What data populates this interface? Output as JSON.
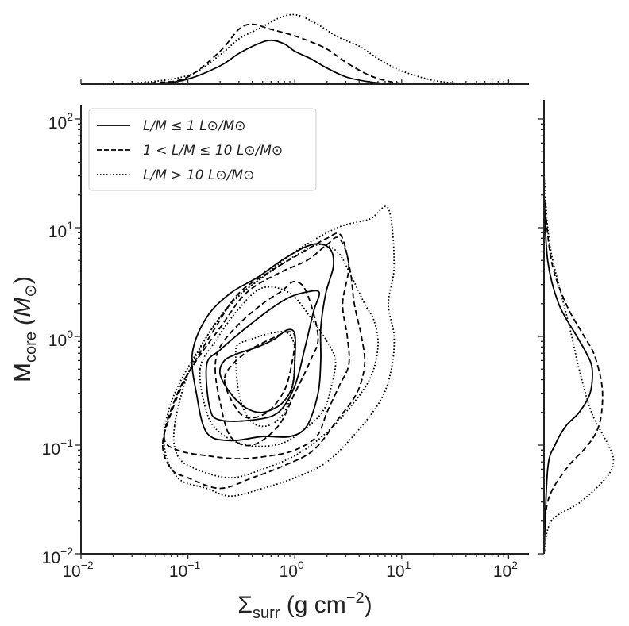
{
  "chart_data": {
    "type": "contour",
    "x_scale": "log",
    "y_scale": "log",
    "xlim": [
      0.01,
      150
    ],
    "ylim": [
      0.01,
      150
    ],
    "grid": false,
    "legend_placement": "top-left",
    "xlabel": {
      "main": "Σ",
      "sub": "surr",
      "rest": " (g cm",
      "sup": "−2",
      "close": ")"
    },
    "ylabel": {
      "main": "M",
      "sub": "core",
      "rest": " (M",
      "sunsym": "⊙",
      "close": ")"
    },
    "x_ticks": [
      {
        "base": "10",
        "exp": "−2"
      },
      {
        "base": "10",
        "exp": "−1"
      },
      {
        "base": "10",
        "exp": "0"
      },
      {
        "base": "10",
        "exp": "1"
      },
      {
        "base": "10",
        "exp": "2"
      }
    ],
    "y_ticks": [
      {
        "base": "10",
        "exp": "−2"
      },
      {
        "base": "10",
        "exp": "−1"
      },
      {
        "base": "10",
        "exp": "0"
      },
      {
        "base": "10",
        "exp": "1"
      },
      {
        "base": "10",
        "exp": "2"
      }
    ],
    "legend": [
      {
        "label": "L/M ≤ 1 L⊙/M⊙",
        "style": "solid"
      },
      {
        "label": "1 < L/M ≤ 10 L⊙/M⊙",
        "style": "dashed"
      },
      {
        "label": "L/M > 10 L⊙/M⊙",
        "style": "dotted"
      }
    ],
    "series": [
      {
        "style": "solid",
        "color": "#000000",
        "contours": [
          [
            [
              0.2,
              0.45
            ],
            [
              0.25,
              0.3
            ],
            [
              0.35,
              0.22
            ],
            [
              0.5,
              0.2
            ],
            [
              0.75,
              0.24
            ],
            [
              0.95,
              0.35
            ],
            [
              1.0,
              0.6
            ],
            [
              1.0,
              1.05
            ],
            [
              0.85,
              1.15
            ],
            [
              0.65,
              0.95
            ],
            [
              0.45,
              0.8
            ],
            [
              0.3,
              0.7
            ],
            [
              0.22,
              0.6
            ]
          ],
          [
            [
              0.15,
              0.55
            ],
            [
              0.16,
              0.22
            ],
            [
              0.2,
              0.17
            ],
            [
              0.4,
              0.17
            ],
            [
              0.7,
              0.2
            ],
            [
              1.0,
              0.35
            ],
            [
              1.25,
              0.8
            ],
            [
              1.5,
              1.7
            ],
            [
              1.7,
              2.5
            ],
            [
              1.4,
              2.6
            ],
            [
              0.9,
              2.3
            ],
            [
              0.6,
              1.8
            ],
            [
              0.35,
              1.2
            ],
            [
              0.2,
              0.75
            ]
          ],
          [
            [
              0.11,
              0.7
            ],
            [
              0.12,
              0.3
            ],
            [
              0.15,
              0.13
            ],
            [
              0.25,
              0.11
            ],
            [
              0.5,
              0.12
            ],
            [
              0.9,
              0.12
            ],
            [
              1.3,
              0.15
            ],
            [
              1.65,
              0.3
            ],
            [
              1.75,
              0.6
            ],
            [
              1.75,
              1.2
            ],
            [
              1.95,
              2.5
            ],
            [
              2.3,
              4.5
            ],
            [
              2.1,
              6.5
            ],
            [
              1.45,
              7.0
            ],
            [
              0.8,
              5.2
            ],
            [
              0.45,
              3.5
            ],
            [
              0.25,
              2.5
            ],
            [
              0.15,
              1.5
            ]
          ]
        ],
        "marginal_x": [
          [
            0.01,
            0.0
          ],
          [
            0.05,
            0.01
          ],
          [
            0.1,
            0.07
          ],
          [
            0.2,
            0.25
          ],
          [
            0.3,
            0.42
          ],
          [
            0.45,
            0.55
          ],
          [
            0.6,
            0.6
          ],
          [
            0.8,
            0.55
          ],
          [
            1.0,
            0.45
          ],
          [
            1.4,
            0.35
          ],
          [
            2.0,
            0.22
          ],
          [
            3.0,
            0.1
          ],
          [
            5.0,
            0.03
          ],
          [
            8.0,
            0.0
          ]
        ],
        "marginal_y": [
          [
            0.01,
            0.0
          ],
          [
            0.06,
            0.05
          ],
          [
            0.1,
            0.15
          ],
          [
            0.15,
            0.3
          ],
          [
            0.2,
            0.48
          ],
          [
            0.3,
            0.63
          ],
          [
            0.5,
            0.66
          ],
          [
            0.7,
            0.58
          ],
          [
            1.0,
            0.45
          ],
          [
            2.0,
            0.2
          ],
          [
            5.0,
            0.05
          ],
          [
            20.0,
            0.0
          ]
        ]
      },
      {
        "style": "dashed",
        "color": "#000000",
        "contours": [
          [
            [
              0.22,
              0.4
            ],
            [
              0.26,
              0.25
            ],
            [
              0.35,
              0.18
            ],
            [
              0.55,
              0.2
            ],
            [
              0.8,
              0.32
            ],
            [
              0.95,
              0.6
            ],
            [
              1.0,
              1.0
            ],
            [
              0.85,
              1.1
            ],
            [
              0.6,
              0.95
            ],
            [
              0.38,
              0.75
            ],
            [
              0.26,
              0.55
            ]
          ],
          [
            [
              0.18,
              0.5
            ],
            [
              0.2,
              0.25
            ],
            [
              0.25,
              0.12
            ],
            [
              0.4,
              0.1
            ],
            [
              0.7,
              0.15
            ],
            [
              1.0,
              0.3
            ],
            [
              1.4,
              0.6
            ],
            [
              1.65,
              1.0
            ],
            [
              1.3,
              2.5
            ],
            [
              1.0,
              3.2
            ],
            [
              0.75,
              2.6
            ],
            [
              0.5,
              2.0
            ],
            [
              0.3,
              1.3
            ],
            [
              0.2,
              0.8
            ]
          ],
          [
            [
              0.06,
              0.12
            ],
            [
              0.08,
              0.09
            ],
            [
              0.15,
              0.08
            ],
            [
              0.3,
              0.075
            ],
            [
              0.6,
              0.08
            ],
            [
              1.0,
              0.09
            ],
            [
              1.6,
              0.12
            ],
            [
              2.0,
              0.2
            ],
            [
              2.6,
              0.35
            ],
            [
              3.2,
              0.55
            ],
            [
              3.1,
              1.0
            ],
            [
              2.8,
              2.0
            ],
            [
              3.2,
              4.5
            ],
            [
              2.6,
              8.0
            ],
            [
              2.0,
              7.0
            ],
            [
              1.3,
              5.0
            ],
            [
              0.7,
              3.8
            ],
            [
              0.35,
              2.5
            ],
            [
              0.2,
              1.2
            ],
            [
              0.12,
              0.6
            ],
            [
              0.08,
              0.3
            ]
          ],
          [
            [
              0.058,
              0.1
            ],
            [
              0.07,
              0.06
            ],
            [
              0.1,
              0.05
            ],
            [
              0.2,
              0.04
            ],
            [
              0.4,
              0.05
            ],
            [
              0.8,
              0.065
            ],
            [
              1.5,
              0.09
            ],
            [
              2.5,
              0.17
            ],
            [
              3.8,
              0.3
            ],
            [
              4.5,
              0.55
            ],
            [
              4.2,
              1.0
            ],
            [
              3.6,
              2.0
            ],
            [
              3.3,
              4.0
            ],
            [
              2.7,
              8.5
            ],
            [
              2.0,
              8.0
            ],
            [
              1.2,
              6.0
            ],
            [
              0.6,
              4.0
            ],
            [
              0.3,
              2.5
            ],
            [
              0.18,
              1.2
            ],
            [
              0.1,
              0.45
            ],
            [
              0.07,
              0.2
            ]
          ]
        ],
        "marginal_x": [
          [
            0.01,
            0.0
          ],
          [
            0.05,
            0.02
          ],
          [
            0.1,
            0.1
          ],
          [
            0.2,
            0.45
          ],
          [
            0.3,
            0.75
          ],
          [
            0.4,
            0.82
          ],
          [
            0.6,
            0.75
          ],
          [
            0.9,
            0.68
          ],
          [
            1.3,
            0.6
          ],
          [
            2.0,
            0.48
          ],
          [
            3.0,
            0.3
          ],
          [
            5.0,
            0.12
          ],
          [
            8.0,
            0.03
          ],
          [
            12.0,
            0.0
          ]
        ],
        "marginal_y": [
          [
            0.01,
            0.0
          ],
          [
            0.03,
            0.05
          ],
          [
            0.06,
            0.3
          ],
          [
            0.1,
            0.6
          ],
          [
            0.15,
            0.75
          ],
          [
            0.25,
            0.8
          ],
          [
            0.4,
            0.78
          ],
          [
            0.7,
            0.68
          ],
          [
            1.0,
            0.55
          ],
          [
            2.0,
            0.3
          ],
          [
            5.0,
            0.1
          ],
          [
            20.0,
            0.0
          ]
        ]
      },
      {
        "style": "dotted",
        "color": "#000000",
        "contours": [
          [
            [
              0.28,
              0.7
            ],
            [
              0.3,
              0.3
            ],
            [
              0.38,
              0.17
            ],
            [
              0.55,
              0.15
            ],
            [
              0.8,
              0.2
            ],
            [
              0.95,
              0.35
            ],
            [
              1.0,
              0.65
            ],
            [
              0.95,
              0.95
            ],
            [
              0.8,
              1.1
            ],
            [
              0.55,
              1.05
            ],
            [
              0.4,
              0.95
            ],
            [
              0.3,
              0.85
            ]
          ],
          [
            [
              0.13,
              0.5
            ],
            [
              0.15,
              0.2
            ],
            [
              0.2,
              0.13
            ],
            [
              0.35,
              0.1
            ],
            [
              0.65,
              0.1
            ],
            [
              1.0,
              0.12
            ],
            [
              1.8,
              0.2
            ],
            [
              2.2,
              0.35
            ],
            [
              2.4,
              0.6
            ],
            [
              2.0,
              0.9
            ],
            [
              1.4,
              1.5
            ],
            [
              0.9,
              2.5
            ],
            [
              0.5,
              2.8
            ],
            [
              0.3,
              1.8
            ],
            [
              0.18,
              0.9
            ]
          ],
          [
            [
              0.075,
              0.15
            ],
            [
              0.08,
              0.08
            ],
            [
              0.12,
              0.06
            ],
            [
              0.25,
              0.05
            ],
            [
              0.5,
              0.06
            ],
            [
              1.0,
              0.08
            ],
            [
              1.8,
              0.12
            ],
            [
              3.0,
              0.2
            ],
            [
              5.0,
              0.4
            ],
            [
              6.0,
              0.8
            ],
            [
              5.5,
              1.4
            ],
            [
              4.5,
              2.0
            ],
            [
              3.2,
              4.0
            ],
            [
              2.5,
              6.0
            ],
            [
              1.7,
              7.0
            ],
            [
              1.0,
              5.5
            ],
            [
              0.5,
              3.5
            ],
            [
              0.28,
              2.2
            ],
            [
              0.16,
              1.1
            ],
            [
              0.1,
              0.45
            ]
          ],
          [
            [
              0.06,
              0.1
            ],
            [
              0.08,
              0.05
            ],
            [
              0.15,
              0.04
            ],
            [
              0.25,
              0.034
            ],
            [
              0.5,
              0.04
            ],
            [
              1.0,
              0.05
            ],
            [
              2.0,
              0.07
            ],
            [
              4.0,
              0.14
            ],
            [
              6.5,
              0.27
            ],
            [
              8.0,
              0.5
            ],
            [
              8.5,
              1.0
            ],
            [
              7.5,
              2.0
            ],
            [
              8.5,
              4.5
            ],
            [
              7.5,
              15.0
            ],
            [
              5.0,
              12.0
            ],
            [
              2.5,
              10.0
            ],
            [
              1.0,
              6.0
            ],
            [
              0.5,
              3.5
            ],
            [
              0.25,
              2.0
            ],
            [
              0.12,
              0.7
            ],
            [
              0.07,
              0.25
            ]
          ]
        ],
        "marginal_x": [
          [
            0.01,
            0.0
          ],
          [
            0.03,
            0.01
          ],
          [
            0.1,
            0.12
          ],
          [
            0.2,
            0.4
          ],
          [
            0.3,
            0.62
          ],
          [
            0.45,
            0.75
          ],
          [
            0.7,
            0.9
          ],
          [
            1.0,
            0.95
          ],
          [
            1.5,
            0.85
          ],
          [
            2.5,
            0.65
          ],
          [
            4.0,
            0.52
          ],
          [
            6.0,
            0.35
          ],
          [
            10.0,
            0.18
          ],
          [
            20.0,
            0.05
          ],
          [
            40.0,
            0.0
          ]
        ],
        "marginal_y": [
          [
            0.01,
            0.0
          ],
          [
            0.02,
            0.1
          ],
          [
            0.03,
            0.5
          ],
          [
            0.05,
            0.85
          ],
          [
            0.07,
            0.95
          ],
          [
            0.1,
            0.88
          ],
          [
            0.2,
            0.65
          ],
          [
            0.5,
            0.48
          ],
          [
            1.0,
            0.38
          ],
          [
            2.0,
            0.27
          ],
          [
            5.0,
            0.12
          ],
          [
            10.0,
            0.05
          ],
          [
            30.0,
            0.0
          ]
        ]
      }
    ]
  }
}
